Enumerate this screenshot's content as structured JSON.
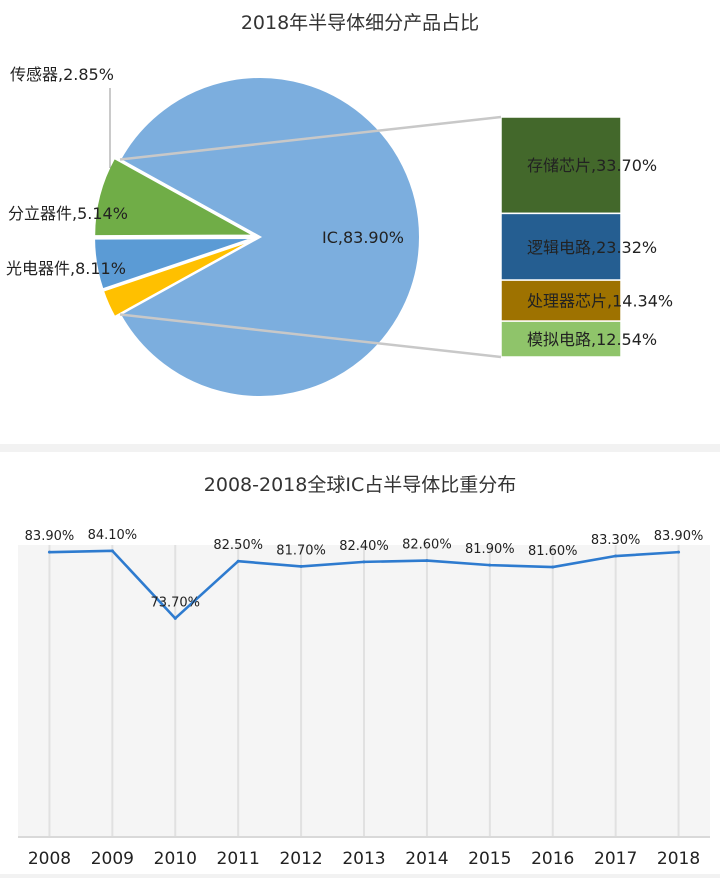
{
  "chart_data": [
    {
      "type": "pie",
      "title": "2018年半导体细分产品占比",
      "slices": [
        {
          "label": "IC,83.90%",
          "name": "IC",
          "value": 83.9,
          "color": "#7caede"
        },
        {
          "label": "传感器,2.85%",
          "name": "传感器",
          "value": 2.85,
          "color": "#ffc000"
        },
        {
          "label": "分立器件,5.14%",
          "name": "分立器件",
          "value": 5.14,
          "color": "#5b9bd5"
        },
        {
          "label": "光电器件,8.11%",
          "name": "光电器件",
          "value": 8.11,
          "color": "#70ad47"
        }
      ],
      "breakdown_of": "IC",
      "breakdown": [
        {
          "label": "存储芯片,33.70%",
          "name": "存储芯片",
          "value": 33.7,
          "color": "#43682b"
        },
        {
          "label": "逻辑电路,23.32%",
          "name": "逻辑电路",
          "value": 23.32,
          "color": "#255e91"
        },
        {
          "label": "处理器芯片,14.34%",
          "name": "处理器芯片",
          "value": 14.34,
          "color": "#9e7200"
        },
        {
          "label": "模拟电路,12.54%",
          "name": "模拟电路",
          "value": 12.54,
          "color": "#8fc46a"
        }
      ]
    },
    {
      "type": "line",
      "title": "2008-2018全球IC占半导体比重分布",
      "categories": [
        "2008",
        "2009",
        "2010",
        "2011",
        "2012",
        "2013",
        "2014",
        "2015",
        "2016",
        "2017",
        "2018"
      ],
      "values": [
        83.9,
        84.1,
        73.7,
        82.5,
        81.7,
        82.4,
        82.6,
        81.9,
        81.6,
        83.3,
        83.9
      ],
      "data_labels": [
        "83.90%",
        "84.10%",
        "73.70%",
        "82.50%",
        "81.70%",
        "82.40%",
        "82.60%",
        "81.90%",
        "81.60%",
        "83.30%",
        "83.90%"
      ],
      "ylim": [
        40,
        85
      ],
      "line_color": "#2e7bcf",
      "grid": "vertical"
    }
  ]
}
